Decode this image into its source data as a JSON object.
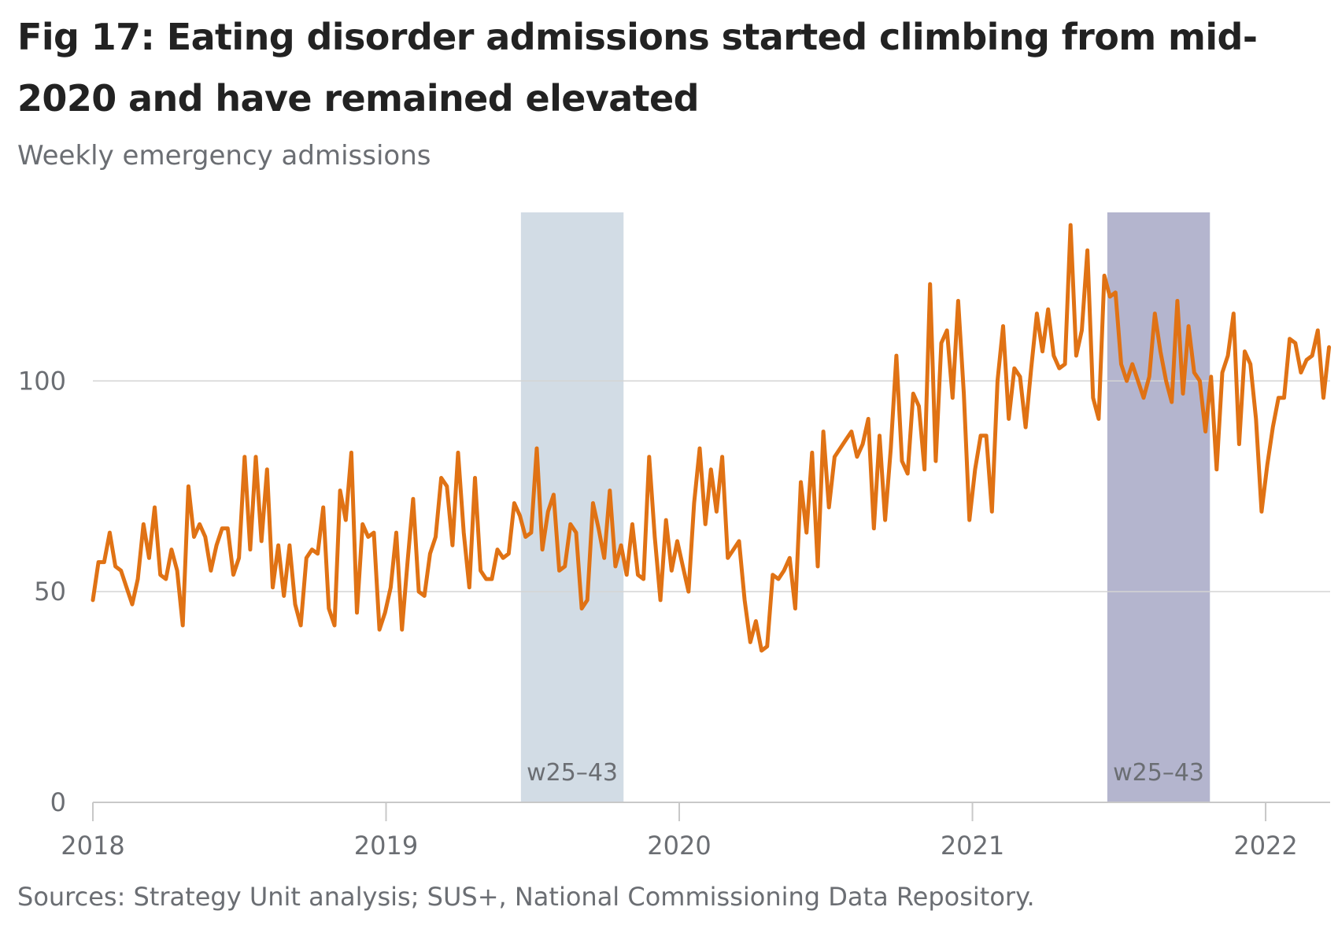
{
  "title": "Fig 17: Eating disorder admissions started climbing from mid-2020 and have remained elevated",
  "subtitle": "Weekly emergency admissions",
  "source": "Sources: Strategy Unit analysis; SUS+, National Commissioning Data Repository.",
  "colors": {
    "line": "#e07214",
    "band_2019": "#d2dce5",
    "band_2021": "#b4b5ce",
    "grid": "#d4d4d4",
    "axis": "#c8c8c8",
    "text": "#6b6e73"
  },
  "chart_data": {
    "type": "line",
    "title": "Fig 17: Eating disorder admissions started climbing from mid-2020 and have remained elevated",
    "ylabel": "Weekly emergency admissions",
    "xlabel": "",
    "xlim": [
      2018,
      2022.22
    ],
    "ylim": [
      0,
      140
    ],
    "yticks": [
      0,
      50,
      100
    ],
    "ytick_labels": [
      "0",
      "50",
      "100"
    ],
    "xticks": [
      2018,
      2019,
      2020,
      2021,
      2022
    ],
    "xtick_labels": [
      "2018",
      "2019",
      "2020",
      "2021",
      "2022"
    ],
    "grid": true,
    "legend": "none",
    "annotations": [
      {
        "label": "w25–43",
        "x_start": 2019.46,
        "x_end": 2019.81,
        "year": 2019
      },
      {
        "label": "w25–43",
        "x_start": 2021.46,
        "x_end": 2021.81,
        "year": 2021
      }
    ],
    "series": [
      {
        "x_start": 2018,
        "x_step_weeks": 1,
        "values": [
          48,
          57,
          57,
          64,
          56,
          55,
          51,
          47,
          53,
          66,
          58,
          70,
          54,
          53,
          60,
          55,
          42,
          75,
          63,
          66,
          63,
          55,
          61,
          65,
          65,
          54,
          58,
          82,
          60,
          82,
          62,
          79,
          51,
          61,
          49,
          61,
          47,
          42,
          58,
          60,
          59,
          70,
          46,
          42,
          74,
          67,
          83,
          45,
          66,
          63,
          64,
          41,
          45,
          51,
          64,
          41,
          57,
          72,
          50,
          49,
          59,
          63,
          77,
          75,
          61,
          83,
          64,
          51,
          77,
          55,
          53,
          53,
          60,
          58,
          59,
          71,
          68,
          63,
          64,
          84,
          60,
          69,
          73,
          55,
          56,
          66,
          64,
          46,
          48,
          71,
          65,
          58,
          74,
          56,
          61,
          54,
          66,
          54,
          53,
          82,
          63,
          48,
          67,
          55,
          62,
          56,
          50,
          71,
          84,
          66,
          79,
          69,
          82,
          58,
          60,
          62,
          48,
          38,
          43,
          36,
          37,
          54,
          53,
          55,
          58,
          46,
          76,
          64,
          83,
          56,
          88,
          70,
          82,
          84,
          86,
          88,
          82,
          85,
          91,
          65,
          87,
          67,
          84,
          106,
          81,
          78,
          97,
          94,
          79,
          123,
          81,
          109,
          112,
          96,
          119,
          97,
          67,
          79,
          87,
          87,
          69,
          100,
          113,
          91,
          103,
          101,
          89,
          103,
          116,
          107,
          117,
          106,
          103,
          104,
          137,
          106,
          112,
          131,
          96,
          91,
          125,
          120,
          121,
          104,
          100,
          104,
          100,
          96,
          101,
          116,
          107,
          100,
          95,
          119,
          97,
          113,
          102,
          100,
          88,
          101,
          79,
          102,
          106,
          116,
          85,
          107,
          104,
          91,
          69,
          80,
          89,
          96,
          96,
          110,
          109,
          102,
          105,
          106,
          112,
          96,
          108
        ]
      }
    ]
  }
}
